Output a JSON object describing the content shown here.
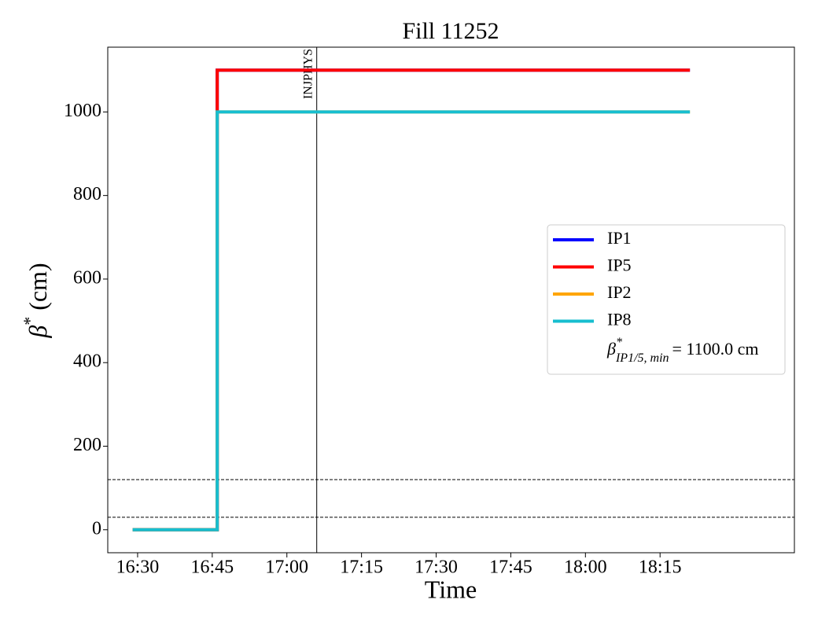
{
  "chart_data": {
    "type": "line",
    "title": "Fill 11252",
    "xlabel": "Time",
    "ylabel": {
      "symbol": "β",
      "sup": "*",
      "text": "(cm)"
    },
    "xlim": [
      "16:24",
      "18:42"
    ],
    "xticks": [
      "16:30",
      "16:45",
      "17:00",
      "17:15",
      "17:30",
      "17:45",
      "18:00",
      "18:15"
    ],
    "ylim": [
      -55,
      1155
    ],
    "yticks": [
      0,
      200,
      400,
      600,
      800,
      1000
    ],
    "series": [
      {
        "name": "IP1",
        "color": "#0000ff",
        "x": [
          "16:29",
          "16:46",
          "16:46",
          "18:21"
        ],
        "values": [
          0,
          0,
          1100,
          1100
        ]
      },
      {
        "name": "IP5",
        "color": "#ff0000",
        "x": [
          "16:29",
          "16:46",
          "16:46",
          "18:21"
        ],
        "values": [
          0,
          0,
          1100,
          1100
        ]
      },
      {
        "name": "IP2",
        "color": "#ffa500",
        "x": [
          "16:29",
          "16:46",
          "16:46",
          "18:21"
        ],
        "values": [
          0,
          0,
          1000,
          1000
        ]
      },
      {
        "name": "IP8",
        "color": "#17becf",
        "x": [
          "16:29",
          "16:46",
          "16:46",
          "18:21"
        ],
        "values": [
          0,
          0,
          1000,
          1000
        ]
      }
    ],
    "hlines": [
      30,
      120
    ],
    "vlines": [
      {
        "x": "17:06",
        "label": "INJPHYS"
      }
    ],
    "legend_note": {
      "symbol": "β",
      "sup": "*",
      "sub": "IP1/5, min",
      "text": "= 1100.0 cm"
    },
    "legend": "center right"
  }
}
